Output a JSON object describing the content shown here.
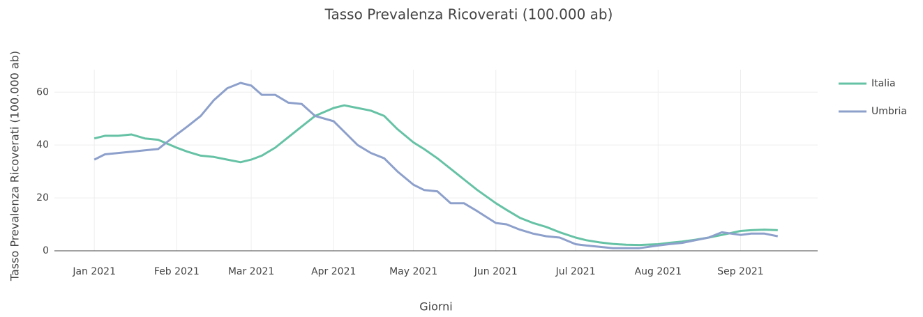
{
  "chart_data": {
    "type": "line",
    "title": "Tasso Prevalenza Ricoverati (100.000 ab)",
    "x_label": "Giorni",
    "y_label": "Tasso Prevalenza Ricoverati (100.000 ab)",
    "x": [
      "2021-01-01",
      "2021-01-05",
      "2021-01-10",
      "2021-01-15",
      "2021-01-20",
      "2021-01-25",
      "2021-02-01",
      "2021-02-05",
      "2021-02-10",
      "2021-02-15",
      "2021-02-20",
      "2021-02-25",
      "2021-03-01",
      "2021-03-05",
      "2021-03-10",
      "2021-03-15",
      "2021-03-20",
      "2021-03-25",
      "2021-04-01",
      "2021-04-05",
      "2021-04-10",
      "2021-04-15",
      "2021-04-20",
      "2021-04-25",
      "2021-05-01",
      "2021-05-05",
      "2021-05-10",
      "2021-05-15",
      "2021-05-20",
      "2021-05-25",
      "2021-06-01",
      "2021-06-05",
      "2021-06-10",
      "2021-06-15",
      "2021-06-20",
      "2021-06-25",
      "2021-07-01",
      "2021-07-05",
      "2021-07-10",
      "2021-07-15",
      "2021-07-20",
      "2021-07-25",
      "2021-08-01",
      "2021-08-05",
      "2021-08-10",
      "2021-08-15",
      "2021-08-20",
      "2021-08-25",
      "2021-09-01",
      "2021-09-05",
      "2021-09-10",
      "2021-09-15"
    ],
    "series": [
      {
        "name": "Italia",
        "color": "#66c2a5",
        "values": [
          42.5,
          43.5,
          43.5,
          44,
          42.5,
          42,
          39,
          37.5,
          36,
          35.5,
          34.5,
          33.5,
          34.5,
          36,
          39,
          43,
          47,
          51,
          54,
          55,
          54,
          53,
          51,
          46,
          41,
          38.5,
          35,
          31,
          27,
          23,
          18,
          15.5,
          12.5,
          10.5,
          9,
          7,
          5,
          4,
          3.2,
          2.6,
          2.3,
          2.2,
          2.5,
          3,
          3.5,
          4.2,
          5,
          6,
          7.5,
          7.8,
          8,
          7.8
        ]
      },
      {
        "name": "Umbria",
        "color": "#8da0cb",
        "values": [
          34.5,
          36.5,
          37,
          37.5,
          38,
          38.5,
          44,
          47,
          51,
          57,
          61.5,
          63.5,
          62.5,
          59,
          59,
          56,
          55.5,
          51,
          49,
          45,
          40,
          37,
          35,
          30,
          25,
          23,
          22.5,
          18,
          18,
          15,
          10.5,
          10,
          8,
          6.5,
          5.5,
          5,
          2.5,
          2,
          1.5,
          1,
          1,
          1,
          2,
          2.5,
          3,
          4,
          5,
          7,
          6,
          6.5,
          6.5,
          5.5
        ]
      }
    ],
    "xlim": [
      "2020-12-17",
      "2021-09-30"
    ],
    "xticks": [
      {
        "value": "2021-01-01",
        "label": "Jan 2021"
      },
      {
        "value": "2021-02-01",
        "label": "Feb 2021"
      },
      {
        "value": "2021-03-01",
        "label": "Mar 2021"
      },
      {
        "value": "2021-04-01",
        "label": "Apr 2021"
      },
      {
        "value": "2021-05-01",
        "label": "May 2021"
      },
      {
        "value": "2021-06-01",
        "label": "Jun 2021"
      },
      {
        "value": "2021-07-01",
        "label": "Jul 2021"
      },
      {
        "value": "2021-08-01",
        "label": "Aug 2021"
      },
      {
        "value": "2021-09-01",
        "label": "Sep 2021"
      }
    ],
    "ylim": [
      0,
      68.5
    ],
    "yticks": [
      0,
      20,
      40,
      60
    ],
    "grid": true,
    "legend": "right"
  }
}
